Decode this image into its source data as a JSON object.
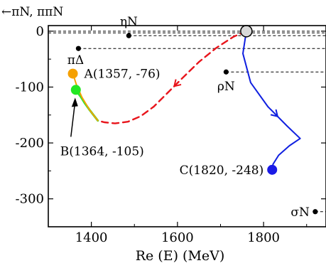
{
  "chart_data": {
    "type": "line",
    "title": "",
    "xlabel": "Re (E) (MeV)",
    "ylabel": "",
    "xlim": [
      1300,
      1945
    ],
    "ylim": [
      -350,
      10
    ],
    "x_ticks": [
      1400,
      1600,
      1800
    ],
    "y_ticks": [
      0,
      -100,
      -200,
      -300
    ],
    "y_tick_labels": [
      "0",
      "-100",
      "-200",
      "-300"
    ],
    "grid": false,
    "colors": {
      "dashed_path": "#e8141b",
      "green_path": "#2ee62e",
      "orange_path": "#f5a000",
      "blue_path": "#1020e0",
      "point_A": "#f5a000",
      "point_B": "#22e822",
      "point_C": "#1a1ae6",
      "start_point": "#d8d8d8"
    },
    "thresholds": [
      {
        "label": "ηN",
        "x": 1487,
        "y": -8
      },
      {
        "label": "πΔ",
        "x": 1370,
        "y": -31
      },
      {
        "label": "ρN",
        "x": 1713,
        "y": -73
      },
      {
        "label": "σN",
        "x": 1920,
        "y": -323
      }
    ],
    "threshold_arrow_label": "←πN, ππN",
    "start_point": {
      "x": 1760,
      "y": 0
    },
    "points": [
      {
        "name": "A",
        "label": "A(1357, -76)",
        "x": 1357,
        "y": -76
      },
      {
        "name": "B",
        "label": "B(1364, -105)",
        "x": 1364,
        "y": -105
      },
      {
        "name": "C",
        "label": "C(1820, -248)",
        "x": 1820,
        "y": -248
      }
    ],
    "series": [
      {
        "style": "dashed",
        "x": [
          1760,
          1730,
          1690,
          1650,
          1610,
          1575,
          1545,
          1515,
          1485,
          1455,
          1430,
          1415
        ],
        "y": [
          0,
          -10,
          -30,
          -55,
          -85,
          -112,
          -135,
          -152,
          -162,
          -165,
          -163,
          -160
        ]
      },
      {
        "style": "solid",
        "x": [
          1415,
          1405,
          1395,
          1384,
          1376,
          1368,
          1364
        ],
        "y": [
          -160,
          -150,
          -140,
          -128,
          -118,
          -110,
          -105
        ]
      },
      {
        "style": "solid",
        "x": [
          1415,
          1395,
          1378,
          1365,
          1357
        ],
        "y": [
          -160,
          -140,
          -118,
          -95,
          -76
        ]
      },
      {
        "style": "solid",
        "x": [
          1760,
          1752,
          1770,
          1810,
          1855,
          1885,
          1860,
          1835,
          1822,
          1820
        ],
        "y": [
          0,
          -40,
          -92,
          -135,
          -170,
          -192,
          -205,
          -222,
          -238,
          -248
        ]
      }
    ]
  }
}
